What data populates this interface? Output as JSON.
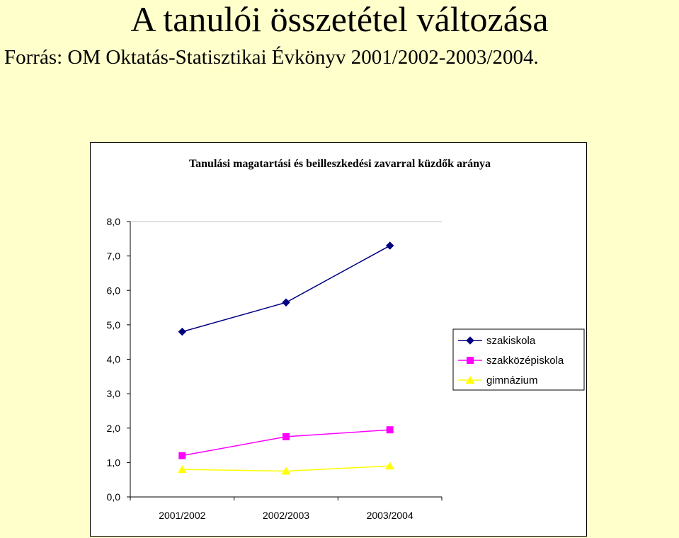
{
  "slide": {
    "title": "A tanulói összetétel változása",
    "subtitle": "Forrás: OM Oktatás-Statisztikai Évkönyv 2001/2002-2003/2004."
  },
  "chart_data": {
    "type": "line",
    "title": "Tanulási magatartási és beilleszkedési zavarral küzdők aránya",
    "xlabel": "",
    "ylabel": "",
    "categories": [
      "2001/2002",
      "2002/2003",
      "2003/2004"
    ],
    "ylim": [
      0,
      8
    ],
    "yticks": [
      "0,0",
      "1,0",
      "2,0",
      "3,0",
      "4,0",
      "5,0",
      "6,0",
      "7,0",
      "8,0"
    ],
    "grid": false,
    "legend_position": "right",
    "series": [
      {
        "name": "szakiskola",
        "values": [
          4.8,
          5.65,
          7.3
        ],
        "color": "#000080",
        "marker": "diamond"
      },
      {
        "name": "szakközépiskola",
        "values": [
          1.2,
          1.75,
          1.95
        ],
        "color": "#FF00FF",
        "marker": "square"
      },
      {
        "name": "gimnázium",
        "values": [
          0.8,
          0.75,
          0.9
        ],
        "color": "#FFFF00",
        "marker": "triangle"
      }
    ]
  }
}
